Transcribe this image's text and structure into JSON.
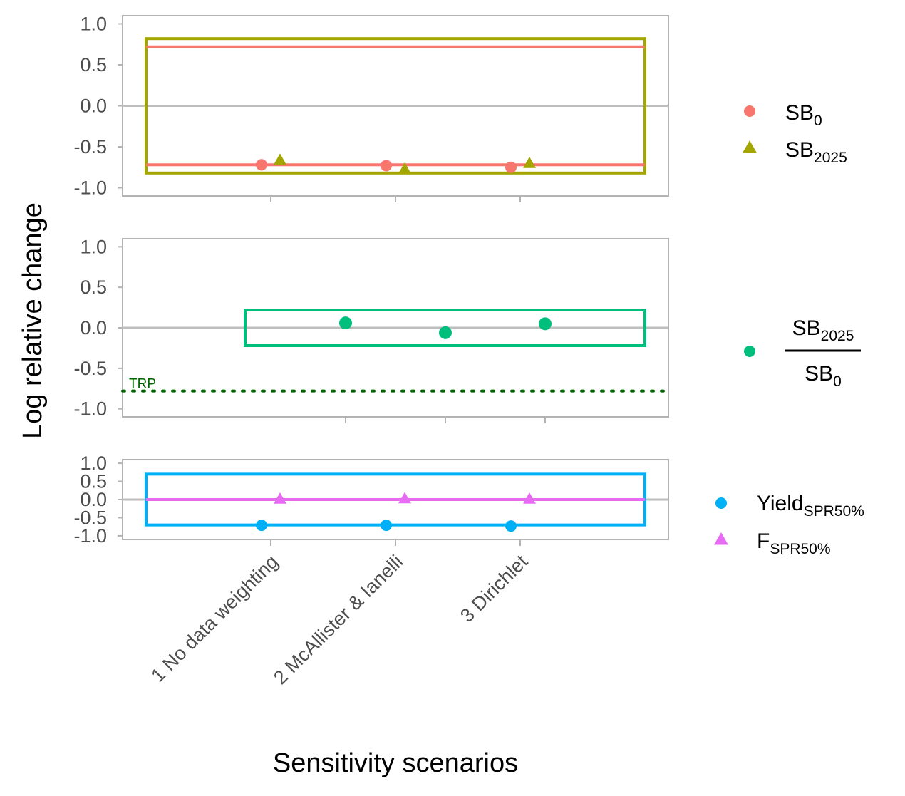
{
  "chart_data": {
    "type": "scatter",
    "ylabel": "Log relative change",
    "xlabel": "Sensitivity scenarios",
    "categories": [
      "1 No data weighting",
      "2 McAllister & Ianelli",
      "3 Dirichlet"
    ],
    "panels": [
      {
        "id": "top",
        "ylim": [
          -1.1,
          1.1
        ],
        "yticks": [
          "1.0",
          "0.5",
          "0.0",
          "-0.5",
          "-1.0"
        ],
        "ytick_values": [
          1.0,
          0.5,
          0.0,
          -0.5,
          -1.0
        ],
        "threshold_lines": [
          {
            "y": 0.72,
            "color": "#F8766D"
          },
          {
            "y": -0.72,
            "color": "#F8766D"
          }
        ],
        "box": {
          "y_top": 0.82,
          "y_bottom": -0.82,
          "x_start": 0.3,
          "x_end": 4.4,
          "color": "#A3A500"
        },
        "series": [
          {
            "name": "SB",
            "sub": "0",
            "shape": "circle",
            "color": "#F8766D",
            "values": [
              -0.72,
              -0.73,
              -0.75
            ]
          },
          {
            "name": "SB",
            "sub": "2025",
            "shape": "triangle",
            "color": "#A3A500",
            "values": [
              -0.66,
              -0.77,
              -0.7
            ]
          }
        ],
        "tick_marks": [
          1,
          2,
          3
        ]
      },
      {
        "id": "middle",
        "ylim": [
          -1.1,
          1.1
        ],
        "yticks": [
          "1.0",
          "0.5",
          "0.0",
          "-0.5",
          "-1.0"
        ],
        "ytick_values": [
          1.0,
          0.5,
          0.0,
          -0.5,
          -1.0
        ],
        "box": {
          "y_top": 0.22,
          "y_bottom": -0.22,
          "x_start": 1.0,
          "x_end": 3.2,
          "color": "#00BF7D"
        },
        "trp": {
          "y": -0.78,
          "label": "TRP",
          "color": "#006400"
        },
        "series": [
          {
            "name": "SB2025/SB0",
            "shape": "circle",
            "color": "#00BF7D",
            "values": [
              0.06,
              -0.06,
              0.05
            ]
          }
        ],
        "tick_marks": [
          1,
          2,
          3
        ]
      },
      {
        "id": "bottom",
        "ylim": [
          -1.1,
          1.1
        ],
        "yticks": [
          "1.0",
          "0.5",
          "0.0",
          "-0.5",
          "-1.0"
        ],
        "ytick_values": [
          1.0,
          0.5,
          0.0,
          -0.5,
          -1.0
        ],
        "threshold_lines": [
          {
            "y": 0.0,
            "color": "#E76BF3"
          }
        ],
        "box": {
          "y_top": 0.7,
          "y_bottom": -0.7,
          "x_start": 0.3,
          "x_end": 4.4,
          "color": "#00B0F6"
        },
        "series": [
          {
            "name": "Yield",
            "sub": "SPR50%",
            "shape": "circle",
            "color": "#00B0F6",
            "values": [
              -0.71,
              -0.71,
              -0.73
            ]
          },
          {
            "name": "F",
            "sub": "SPR50%",
            "shape": "triangle",
            "color": "#E76BF3",
            "values": [
              0.02,
              0.03,
              0.02
            ]
          }
        ],
        "tick_marks": [
          1,
          2,
          3
        ]
      }
    ],
    "legend": [
      {
        "group": "top",
        "items": [
          {
            "base": "SB",
            "sub": "0",
            "shape": "circle",
            "color": "#F8766D"
          },
          {
            "base": "SB",
            "sub": "2025",
            "shape": "triangle",
            "color": "#A3A500"
          }
        ]
      },
      {
        "group": "middle",
        "items": [
          {
            "num_base": "SB",
            "num_sub": "2025",
            "den_base": "SB",
            "den_sub": "0",
            "shape": "circle",
            "color": "#00BF7D"
          }
        ]
      },
      {
        "group": "bottom",
        "items": [
          {
            "base": "Yield",
            "sub": "SPR50%",
            "shape": "circle",
            "color": "#00B0F6"
          },
          {
            "base": "F",
            "sub": "SPR50%",
            "shape": "triangle",
            "color": "#E76BF3"
          }
        ]
      }
    ]
  }
}
